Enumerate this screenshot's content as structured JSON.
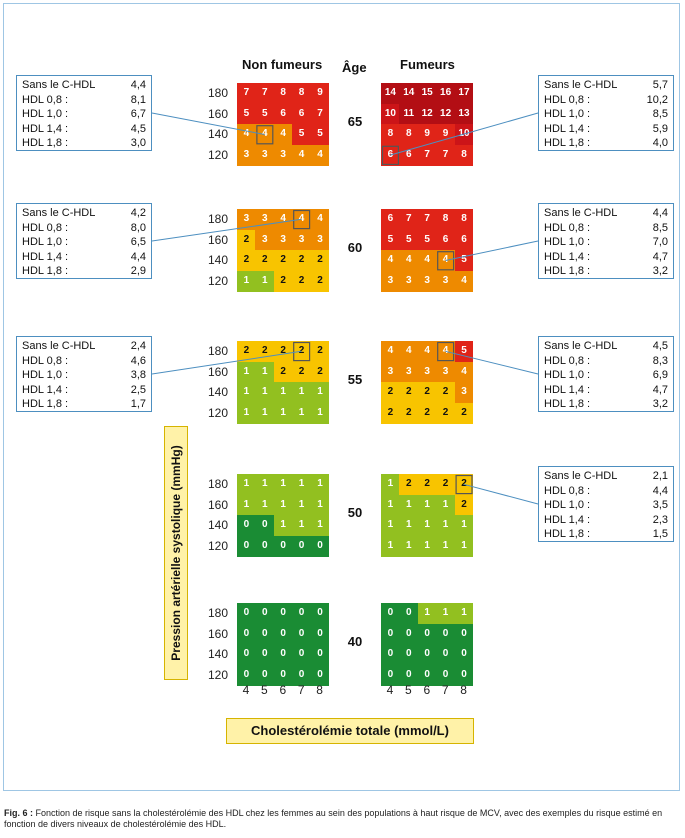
{
  "colors": {
    "0": "#1a8c34",
    "1": "#92c020",
    "2": "#f8c400",
    "3": "#ee8a00",
    "4": "#ee8a00",
    "5": "#e02418",
    "6": "#e02418",
    "7": "#e02418",
    "8": "#e02418",
    "9": "#e02418",
    "10": "#cc1418",
    "high": "#b30e14"
  },
  "chart_data": {
    "type": "heatmap",
    "header_nonsmokers": "Non fumeurs",
    "header_age": "Âge",
    "header_smokers": "Fumeurs",
    "ylabel": "Pression artérielle systolique (mmHg)",
    "xlabel": "Cholestérolémie totale (mmol/L)",
    "sbp_levels": [
      "180",
      "160",
      "140",
      "120"
    ],
    "cholesterol_levels": [
      "4",
      "5",
      "6",
      "7",
      "8"
    ],
    "panels": [
      {
        "age": "65",
        "non_smokers": [
          [
            7,
            7,
            8,
            8,
            9
          ],
          [
            5,
            5,
            6,
            6,
            7
          ],
          [
            4,
            4,
            4,
            5,
            5
          ],
          [
            3,
            3,
            3,
            4,
            4
          ]
        ],
        "smokers": [
          [
            14,
            14,
            15,
            16,
            17
          ],
          [
            10,
            11,
            12,
            12,
            13
          ],
          [
            8,
            8,
            9,
            9,
            10
          ],
          [
            6,
            6,
            7,
            7,
            8
          ]
        ]
      },
      {
        "age": "60",
        "non_smokers": [
          [
            3,
            3,
            4,
            4,
            4
          ],
          [
            2,
            3,
            3,
            3,
            3
          ],
          [
            2,
            2,
            2,
            2,
            2
          ],
          [
            1,
            1,
            2,
            2,
            2
          ]
        ],
        "smokers": [
          [
            6,
            7,
            7,
            8,
            8
          ],
          [
            5,
            5,
            5,
            6,
            6
          ],
          [
            4,
            4,
            4,
            4,
            5
          ],
          [
            3,
            3,
            3,
            3,
            4
          ]
        ]
      },
      {
        "age": "55",
        "non_smokers": [
          [
            2,
            2,
            2,
            2,
            2
          ],
          [
            1,
            1,
            2,
            2,
            2
          ],
          [
            1,
            1,
            1,
            1,
            1
          ],
          [
            1,
            1,
            1,
            1,
            1
          ]
        ],
        "smokers": [
          [
            4,
            4,
            4,
            4,
            5
          ],
          [
            3,
            3,
            3,
            3,
            4
          ],
          [
            2,
            2,
            2,
            2,
            3
          ],
          [
            2,
            2,
            2,
            2,
            2
          ]
        ]
      },
      {
        "age": "50",
        "non_smokers": [
          [
            1,
            1,
            1,
            1,
            1
          ],
          [
            1,
            1,
            1,
            1,
            1
          ],
          [
            0,
            0,
            1,
            1,
            1
          ],
          [
            0,
            0,
            0,
            0,
            0
          ]
        ],
        "smokers": [
          [
            1,
            2,
            2,
            2,
            2
          ],
          [
            1,
            1,
            1,
            1,
            2
          ],
          [
            1,
            1,
            1,
            1,
            1
          ],
          [
            1,
            1,
            1,
            1,
            1
          ]
        ]
      },
      {
        "age": "40",
        "non_smokers": [
          [
            0,
            0,
            0,
            0,
            0
          ],
          [
            0,
            0,
            0,
            0,
            0
          ],
          [
            0,
            0,
            0,
            0,
            0
          ],
          [
            0,
            0,
            0,
            0,
            0
          ]
        ],
        "smokers": [
          [
            0,
            0,
            1,
            1,
            1
          ],
          [
            0,
            0,
            0,
            0,
            0
          ],
          [
            0,
            0,
            0,
            0,
            0
          ],
          [
            0,
            0,
            0,
            0,
            0
          ]
        ]
      }
    ],
    "examples": [
      {
        "side": "left",
        "panel_age": "65",
        "group": "non_smokers",
        "highlight": {
          "row": 2,
          "col": 1
        },
        "rows": [
          {
            "label": "Sans le C-HDL",
            "value": "4,4"
          },
          {
            "label": "HDL 0,8 :",
            "value": "8,1"
          },
          {
            "label": "HDL 1,0 :",
            "value": "6,7"
          },
          {
            "label": "HDL 1,4 :",
            "value": "4,5"
          },
          {
            "label": "HDL 1,8 :",
            "value": "3,0"
          }
        ]
      },
      {
        "side": "right",
        "panel_age": "65",
        "group": "smokers",
        "highlight": {
          "row": 3,
          "col": 0
        },
        "rows": [
          {
            "label": "Sans le C-HDL",
            "value": "5,7"
          },
          {
            "label": "HDL 0,8 :",
            "value": "10,2"
          },
          {
            "label": "HDL 1,0 :",
            "value": "8,5"
          },
          {
            "label": "HDL 1,4 :",
            "value": "5,9"
          },
          {
            "label": "HDL 1,8 :",
            "value": "4,0"
          }
        ]
      },
      {
        "side": "left",
        "panel_age": "60",
        "group": "non_smokers",
        "highlight": {
          "row": 0,
          "col": 3
        },
        "rows": [
          {
            "label": "Sans le C-HDL",
            "value": "4,2"
          },
          {
            "label": "HDL 0,8 :",
            "value": "8,0"
          },
          {
            "label": "HDL 1,0 :",
            "value": "6,5"
          },
          {
            "label": "HDL 1,4 :",
            "value": "4,4"
          },
          {
            "label": "HDL 1,8 :",
            "value": "2,9"
          }
        ]
      },
      {
        "side": "right",
        "panel_age": "60",
        "group": "smokers",
        "highlight": {
          "row": 2,
          "col": 3
        },
        "rows": [
          {
            "label": "Sans le C-HDL",
            "value": "4,4"
          },
          {
            "label": "HDL 0,8 :",
            "value": "8,5"
          },
          {
            "label": "HDL 1,0 :",
            "value": "7,0"
          },
          {
            "label": "HDL 1,4 :",
            "value": "4,7"
          },
          {
            "label": "HDL 1,8 :",
            "value": "3,2"
          }
        ]
      },
      {
        "side": "left",
        "panel_age": "55",
        "group": "non_smokers",
        "highlight": {
          "row": 0,
          "col": 3
        },
        "rows": [
          {
            "label": "Sans le C-HDL",
            "value": "2,4"
          },
          {
            "label": "HDL 0,8 :",
            "value": "4,6"
          },
          {
            "label": "HDL 1,0 :",
            "value": "3,8"
          },
          {
            "label": "HDL 1,4 :",
            "value": "2,5"
          },
          {
            "label": "HDL 1,8 :",
            "value": "1,7"
          }
        ]
      },
      {
        "side": "right",
        "panel_age": "55",
        "group": "smokers",
        "highlight": {
          "row": 0,
          "col": 3
        },
        "rows": [
          {
            "label": "Sans le C-HDL",
            "value": "4,5"
          },
          {
            "label": "HDL 0,8 :",
            "value": "8,3"
          },
          {
            "label": "HDL 1,0 :",
            "value": "6,9"
          },
          {
            "label": "HDL 1,4 :",
            "value": "4,7"
          },
          {
            "label": "HDL 1,8 :",
            "value": "3,2"
          }
        ]
      },
      {
        "side": "right",
        "panel_age": "50",
        "group": "smokers",
        "highlight": {
          "row": 0,
          "col": 4
        },
        "rows": [
          {
            "label": "Sans le C-HDL",
            "value": "2,1"
          },
          {
            "label": "HDL 0,8 :",
            "value": "4,4"
          },
          {
            "label": "HDL 1,0 :",
            "value": "3,5"
          },
          {
            "label": "HDL 1,4 :",
            "value": "2,3"
          },
          {
            "label": "HDL 1,8 :",
            "value": "1,5"
          }
        ]
      }
    ]
  },
  "caption": {
    "label": "Fig. 6 :",
    "text": " Fonction de risque sans la cholestérolémie des HDL chez les femmes au sein des populations à haut risque de MCV, avec des exemples du risque estimé en fonction de divers niveaux de cholestérolémie des HDL."
  }
}
